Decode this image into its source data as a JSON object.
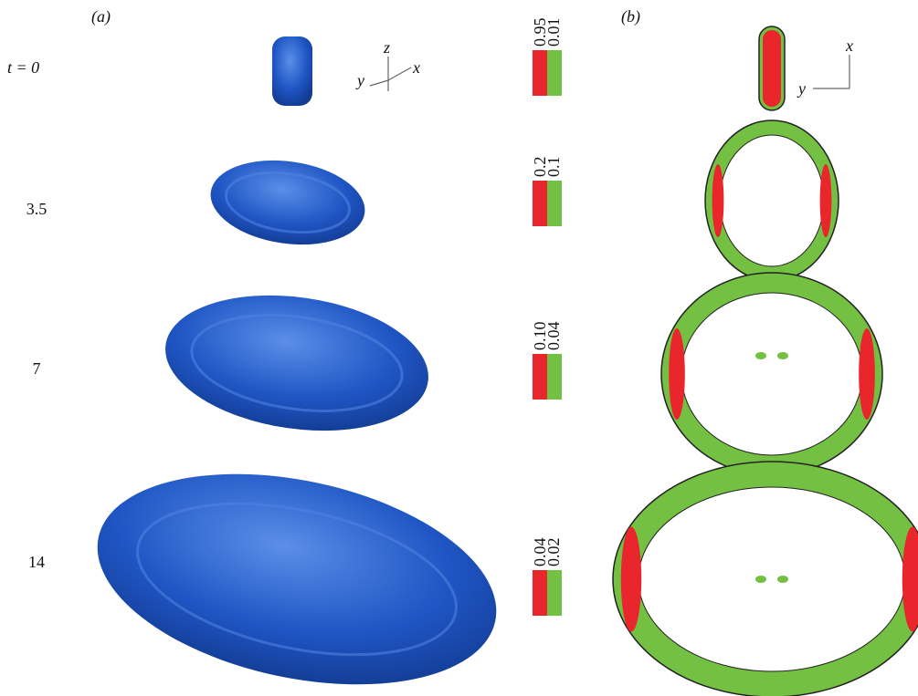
{
  "panels": {
    "a": "(a)",
    "b": "(b)"
  },
  "axes_a": {
    "z": "z",
    "y": "y",
    "x": "x"
  },
  "axes_b": {
    "x": "x",
    "y": "y"
  },
  "rows": [
    {
      "time": "t = 0",
      "levels": [
        "0.95",
        "0.01"
      ]
    },
    {
      "time": "3.5",
      "levels": [
        "0.2",
        "0.1"
      ]
    },
    {
      "time": "7",
      "levels": [
        "0.10",
        "0.04"
      ]
    },
    {
      "time": "14",
      "levels": [
        "0.04",
        "0.02"
      ]
    }
  ]
}
